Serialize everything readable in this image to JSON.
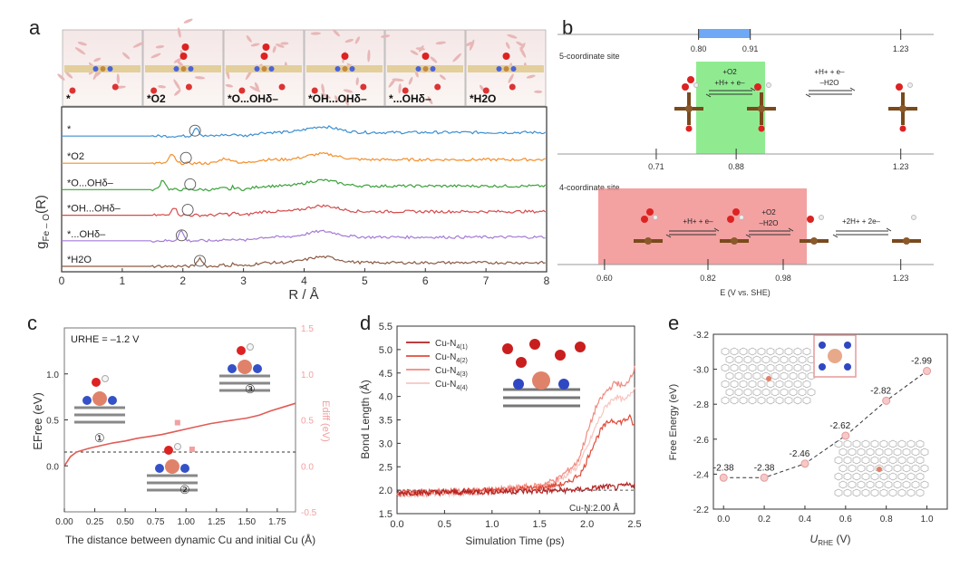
{
  "figure_labels": {
    "a": "a",
    "b": "b",
    "c": "c",
    "d": "d",
    "e": "e"
  },
  "chart_data": [
    {
      "id": "a",
      "type": "line",
      "title": "",
      "xlabel": "R / Å",
      "ylabel": "gFe-O(R)",
      "ylabel_main": "g",
      "ylabel_sub": "Fe – O",
      "ylabel_tail": "(R)",
      "xlim": [
        0,
        8
      ],
      "xticks": [
        "0",
        "1",
        "2",
        "3",
        "4",
        "5",
        "6",
        "7",
        "8"
      ],
      "snapshot_labels": [
        "*",
        "*O2",
        "*O...OHδ–",
        "*OH...OHδ–",
        "*...OHδ–",
        "*H2O"
      ],
      "series": [
        {
          "name": "*",
          "color": "#3b8fd1",
          "base": 0.1,
          "peak_r": 2.22,
          "peak_h": 0.055,
          "circle_r": 2.2
        },
        {
          "name": "*O2",
          "color": "#f28e2b",
          "base": 0.265,
          "peak_r": 1.82,
          "peak_h": 0.055,
          "circle_r": 2.05
        },
        {
          "name": "*O...OHδ–",
          "color": "#3ca23c",
          "base": 0.425,
          "peak_r": 1.67,
          "peak_h": 0.06,
          "circle_r": 2.12
        },
        {
          "name": "*OH...OHδ–",
          "color": "#d64a4a",
          "base": 0.58,
          "peak_r": 1.85,
          "peak_h": 0.05,
          "circle_r": 2.08
        },
        {
          "name": "*...OHδ–",
          "color": "#a47bd6",
          "base": 0.735,
          "peak_r": 1.97,
          "peak_h": 0.06,
          "circle_r": 1.98
        },
        {
          "name": "*H2O",
          "color": "#8b5a44",
          "base": 0.89,
          "peak_r": 2.28,
          "peak_h": 0.05,
          "circle_r": 2.28
        }
      ]
    },
    {
      "id": "b",
      "type": "diagram",
      "xlabel": "E (V vs. SHE)",
      "top_axis": {
        "ticks": [
          "0.80",
          "0.91",
          "1.23"
        ],
        "values": [
          0.8,
          0.91,
          1.23
        ],
        "highlight": [
          0.8,
          0.91
        ]
      },
      "five_coord": {
        "label": "5-coordinate site",
        "ticks": [
          "0.71",
          "0.88",
          "1.23"
        ],
        "values": [
          0.71,
          0.88,
          1.23
        ],
        "step1": "+O2",
        "step1b": "+H+ + e–",
        "step2": "+H+ + e–",
        "step2b": "–H2O"
      },
      "four_coord": {
        "label": "4-coordinate site",
        "ticks": [
          "0.60",
          "0.82",
          "0.98",
          "1.23"
        ],
        "values": [
          0.6,
          0.82,
          0.98,
          1.23
        ],
        "step1": "+H+ + e–",
        "step2": "+O2",
        "step2b": "–H2O",
        "step3": "+2H+ + 2e–"
      }
    },
    {
      "id": "c",
      "type": "line",
      "title": "URHE = –1.2 V",
      "xlabel": "The distance between dynamic Cu and initial Cu (Å)",
      "ylabel": "EFree (eV)",
      "ylabel_right": "Ediff (eV)",
      "xlim": [
        0,
        1.9
      ],
      "ylim": [
        -0.5,
        1.5
      ],
      "xticks": [
        "0.00",
        "0.25",
        "0.50",
        "0.75",
        "1.00",
        "1.25",
        "1.50",
        "1.75"
      ],
      "yticks_left": [
        "0.0",
        "0.5",
        "1.0"
      ],
      "yticks_right": [
        "-0.5",
        "0.0",
        "0.5",
        "1.0",
        "1.5"
      ],
      "dashed_y": 0.15,
      "x": [
        0,
        0.05,
        0.1,
        0.2,
        0.3,
        0.4,
        0.5,
        0.6,
        0.7,
        0.8,
        0.9,
        1.0,
        1.1,
        1.2,
        1.3,
        1.4,
        1.5,
        1.6,
        1.7,
        1.8,
        1.9
      ],
      "y": [
        0.0,
        0.1,
        0.15,
        0.19,
        0.22,
        0.25,
        0.27,
        0.3,
        0.32,
        0.34,
        0.37,
        0.4,
        0.43,
        0.46,
        0.48,
        0.5,
        0.52,
        0.55,
        0.6,
        0.64,
        0.68
      ],
      "markers": [
        {
          "x": 0.93,
          "y": 0.47
        },
        {
          "x": 1.05,
          "y": 0.18
        }
      ],
      "structure_labels": [
        "①",
        "②",
        "③"
      ]
    },
    {
      "id": "d",
      "type": "line",
      "xlabel": "Simulation Time (ps)",
      "ylabel": "Bond Length (Å)",
      "xlim": [
        0,
        2.5
      ],
      "ylim": [
        1.5,
        5.5
      ],
      "xticks": [
        "0.0",
        "0.5",
        "1.0",
        "1.5",
        "2.0",
        "2.5"
      ],
      "yticks": [
        "1.5",
        "2.0",
        "2.5",
        "3.0",
        "3.5",
        "4.0",
        "4.5",
        "5.0",
        "5.5"
      ],
      "reference_label": "Cu-N:2.00 Å",
      "series": [
        {
          "name": "Cu-N4(1)",
          "label_main": "Cu-N",
          "label_sub": "4(1)",
          "color": "#b22222",
          "x": [
            0,
            0.5,
            1.0,
            1.5,
            1.8,
            2.0,
            2.1,
            2.2,
            2.3,
            2.4,
            2.5
          ],
          "y": [
            1.95,
            1.95,
            1.97,
            1.98,
            2.0,
            2.02,
            2.05,
            2.08,
            2.05,
            2.1,
            2.12
          ]
        },
        {
          "name": "Cu-N4(2)",
          "label_main": "Cu-N",
          "label_sub": "4(2)",
          "color": "#e04b3a",
          "x": [
            0,
            0.5,
            1.0,
            1.5,
            1.8,
            1.95,
            2.05,
            2.15,
            2.25,
            2.35,
            2.45,
            2.5
          ],
          "y": [
            1.95,
            1.97,
            2.0,
            2.05,
            2.15,
            2.4,
            2.9,
            3.3,
            3.5,
            3.45,
            3.55,
            3.35
          ]
        },
        {
          "name": "Cu-N4(3)",
          "label_main": "Cu-N",
          "label_sub": "4(3)",
          "color": "#f08a80",
          "x": [
            0,
            0.5,
            1.0,
            1.5,
            1.7,
            1.9,
            2.0,
            2.1,
            2.2,
            2.3,
            2.4,
            2.5
          ],
          "y": [
            1.92,
            1.95,
            2.0,
            2.1,
            2.25,
            2.6,
            3.2,
            3.8,
            4.1,
            4.3,
            4.2,
            4.6
          ]
        },
        {
          "name": "Cu-N4(4)",
          "label_main": "Cu-N",
          "label_sub": "4(4)",
          "color": "#f7c6c0",
          "x": [
            0,
            0.5,
            1.0,
            1.5,
            1.7,
            1.9,
            2.0,
            2.1,
            2.2,
            2.3,
            2.4,
            2.5
          ],
          "y": [
            1.9,
            1.93,
            1.97,
            2.05,
            2.2,
            2.5,
            2.9,
            3.4,
            3.8,
            4.0,
            3.9,
            4.2
          ]
        }
      ]
    },
    {
      "id": "e",
      "type": "line",
      "xlabel": "URHE (V)",
      "xlabel_main": "U",
      "xlabel_sub": "RHE",
      "xlabel_tail": " (V)",
      "ylabel": "Free Energy (eV)",
      "xlim": [
        -0.05,
        1.1
      ],
      "ylim": [
        -2.2,
        -3.2
      ],
      "xticks": [
        "0.0",
        "0.2",
        "0.4",
        "0.6",
        "0.8",
        "1.0"
      ],
      "xtick_values": [
        0,
        0.2,
        0.4,
        0.6,
        0.8,
        1.0
      ],
      "yticks": [
        "-3.2",
        "-3.0",
        "-2.8",
        "-2.6",
        "-2.4",
        "-2.2"
      ],
      "ytick_values": [
        -3.2,
        -3.0,
        -2.8,
        -2.6,
        -2.4,
        -2.2
      ],
      "x": [
        0,
        0.2,
        0.4,
        0.6,
        0.8,
        1.0
      ],
      "y": [
        -2.38,
        -2.38,
        -2.46,
        -2.62,
        -2.82,
        -2.99
      ],
      "point_labels": [
        "-2.38",
        "-2.38",
        "-2.46",
        "-2.62",
        "-2.82",
        "-2.99"
      ]
    }
  ]
}
